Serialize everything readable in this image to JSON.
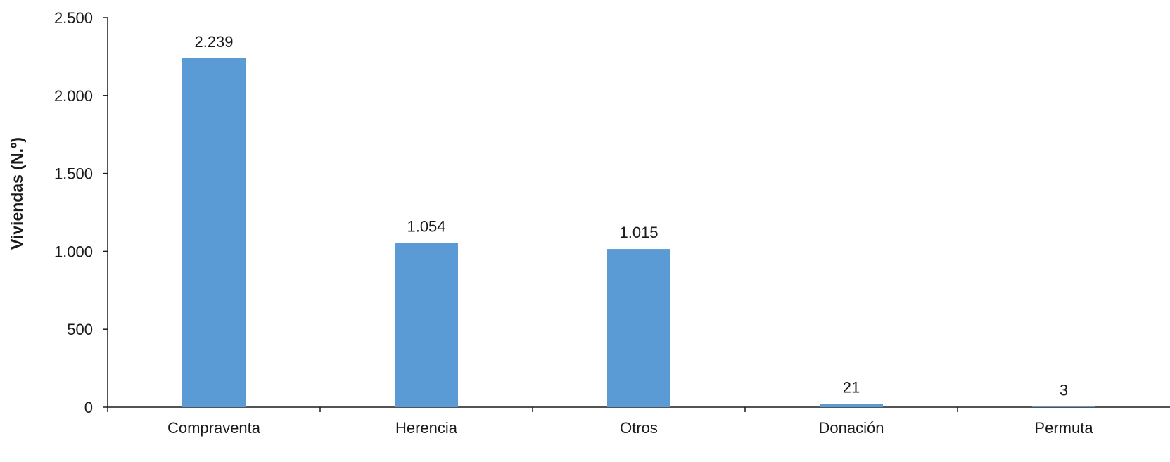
{
  "chart_data": {
    "type": "bar",
    "title": "",
    "xlabel": "",
    "ylabel": "Viviendas (N.º)",
    "categories": [
      "Compraventa",
      "Herencia",
      "Otros",
      "Donación",
      "Permuta"
    ],
    "values": [
      2239,
      1054,
      1015,
      21,
      3
    ],
    "data_labels": [
      "2.239",
      "1.054",
      "1.015",
      "21",
      "3"
    ],
    "ylim": [
      0,
      2500
    ],
    "yticks": [
      0,
      500,
      1000,
      1500,
      2000,
      2500
    ],
    "ytick_labels": [
      "0",
      "500",
      "1.000",
      "1.500",
      "2.000",
      "2.500"
    ],
    "grid": false,
    "legend": "none",
    "bar_color": "#5B9BD5"
  }
}
